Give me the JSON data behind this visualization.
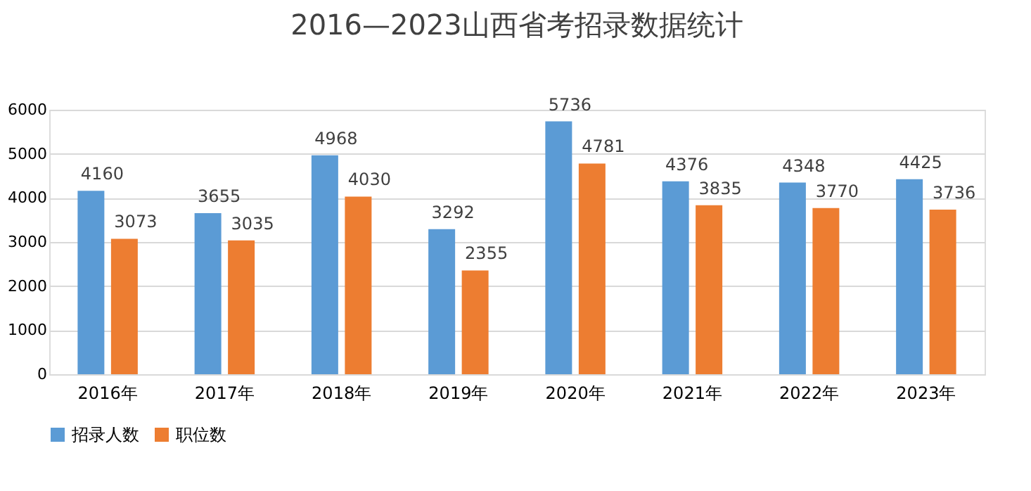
{
  "chart_data": {
    "type": "bar",
    "title": "2016—2023山西省考招录数据统计",
    "categories": [
      "2016年",
      "2017年",
      "2018年",
      "2019年",
      "2020年",
      "2021年",
      "2022年",
      "2023年"
    ],
    "series": [
      {
        "name": "招录人数",
        "color": "#5b9bd5",
        "values": [
          4160,
          3655,
          4968,
          3292,
          5736,
          4376,
          4348,
          4425
        ]
      },
      {
        "name": "职位数",
        "color": "#ed7d31",
        "values": [
          3073,
          3035,
          4030,
          2355,
          4781,
          3835,
          3770,
          3736
        ]
      }
    ],
    "ylim": [
      0,
      6000
    ],
    "yticks": [
      0,
      1000,
      2000,
      3000,
      4000,
      5000,
      6000
    ],
    "grid": "y",
    "legend": "bottom",
    "data_labels": true
  }
}
